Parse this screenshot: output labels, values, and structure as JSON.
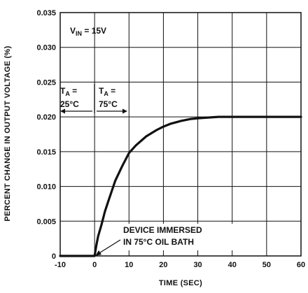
{
  "chart_data": {
    "type": "line",
    "title": "",
    "xlabel": "TIME (SEC)",
    "ylabel": "PERCENT CHANGE IN OUTPUT VOLTAGE (%)",
    "xlim": [
      -10,
      60
    ],
    "ylim": [
      0,
      0.035
    ],
    "xticks": [
      -10,
      0,
      10,
      20,
      30,
      40,
      50,
      60
    ],
    "yticks": [
      0,
      0.005,
      0.01,
      0.015,
      0.02,
      0.025,
      0.03,
      0.035
    ],
    "xtick_labels": [
      "-10",
      "0",
      "10",
      "20",
      "30",
      "40",
      "50",
      "60"
    ],
    "ytick_labels": [
      "0",
      "0.005",
      "0.010",
      "0.015",
      "0.020",
      "0.025",
      "0.030",
      "0.035"
    ],
    "grid": true,
    "series": [
      {
        "x": [
          -10,
          0,
          0.5,
          1,
          2,
          3,
          4,
          6,
          8,
          10,
          12,
          15,
          18,
          20,
          22,
          25,
          28,
          30,
          33,
          36,
          40,
          45,
          50,
          55,
          60
        ],
        "y": [
          0,
          0,
          0.0015,
          0.0028,
          0.0045,
          0.0064,
          0.0079,
          0.0108,
          0.0129,
          0.0148,
          0.0159,
          0.0172,
          0.0181,
          0.0186,
          0.019,
          0.0194,
          0.0197,
          0.0198,
          0.0199,
          0.02,
          0.02,
          0.02,
          0.02,
          0.02,
          0.02
        ]
      }
    ],
    "annotations": {
      "vin_label": {
        "main": "V",
        "sub": "IN",
        "rest": " = 15V"
      },
      "ta_left": {
        "main": "T",
        "sub": "A",
        "rest": " =",
        "value": "25°C"
      },
      "ta_right": {
        "main": "T",
        "sub": "A",
        "rest": " =",
        "value": "75°C"
      },
      "device_note_line1": "DEVICE IMMERSED",
      "device_note_line2": "IN 75°C OIL BATH"
    }
  }
}
